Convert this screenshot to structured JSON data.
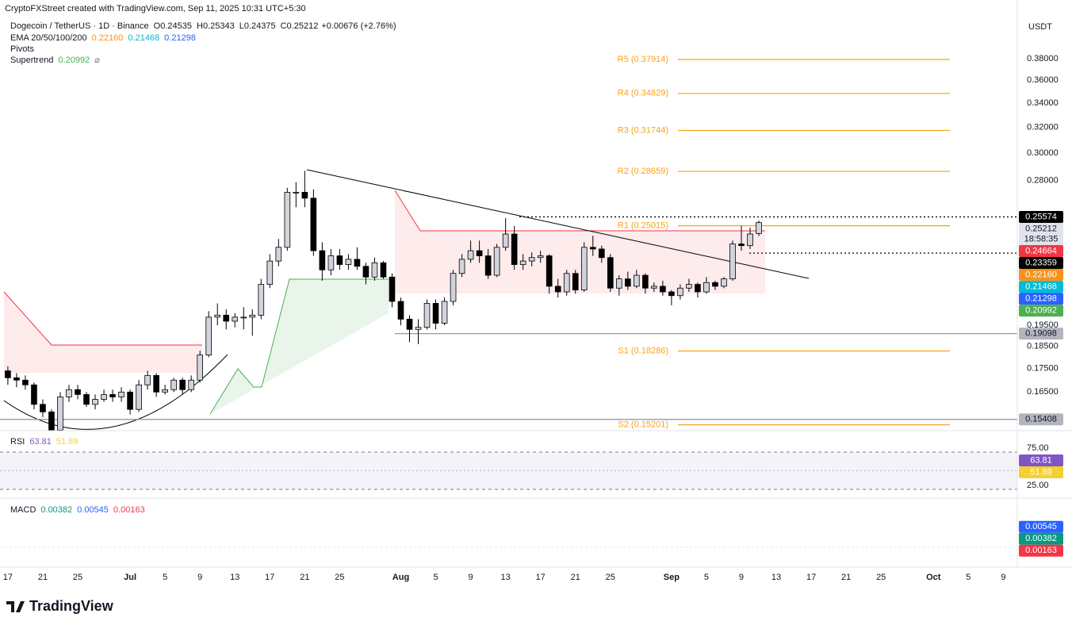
{
  "header": {
    "attribution": "CryptoFXStreet created with TradingView.com, Sep 11, 2025 10:31 UTC+5:30",
    "symbol": "Dogecoin / TetherUS · 1D · Binance",
    "open": "O0.24535",
    "high": "H0.25343",
    "low": "L0.24375",
    "close": "C0.25212",
    "change": "+0.00676 (+2.76%)",
    "ema_label": "EMA 20/50/100/200",
    "ema_values": [
      {
        "text": "0.22160",
        "color": "#f7931a"
      },
      {
        "text": "0.21468",
        "color": "#00bcd4"
      },
      {
        "text": "0.21298",
        "color": "#2962ff"
      }
    ],
    "pivots_label": "Pivots",
    "supertrend_label": "Supertrend",
    "supertrend_value": "0.20992",
    "currency": "USDT"
  },
  "chart_data": {
    "type": "candlestick",
    "log_scale": true,
    "up_color": "#d1d4dc",
    "down_color": "#000000",
    "ylim": [
      0.1498,
      0.44
    ],
    "yticks": [
      {
        "value": 0.38,
        "label": "0.38000"
      },
      {
        "value": 0.36,
        "label": "0.36000"
      },
      {
        "value": 0.34,
        "label": "0.34000"
      },
      {
        "value": 0.32,
        "label": "0.32000"
      },
      {
        "value": 0.3,
        "label": "0.30000"
      },
      {
        "value": 0.28,
        "label": "0.28000"
      },
      {
        "value": 0.195,
        "label": "0.19500"
      },
      {
        "value": 0.185,
        "label": "0.18500"
      },
      {
        "value": 0.175,
        "label": "0.17500"
      },
      {
        "value": 0.165,
        "label": "0.16500"
      }
    ],
    "xlim": [
      -0.9,
      115.6
    ],
    "xticks": [
      {
        "value": 0,
        "label": "17"
      },
      {
        "value": 4,
        "label": "21"
      },
      {
        "value": 8,
        "label": "25"
      },
      {
        "value": 14,
        "label": "Jul"
      },
      {
        "value": 18,
        "label": "5"
      },
      {
        "value": 22,
        "label": "9"
      },
      {
        "value": 26,
        "label": "13"
      },
      {
        "value": 30,
        "label": "17"
      },
      {
        "value": 34,
        "label": "21"
      },
      {
        "value": 38,
        "label": "25"
      },
      {
        "value": 45,
        "label": "Aug"
      },
      {
        "value": 49,
        "label": "5"
      },
      {
        "value": 53,
        "label": "9"
      },
      {
        "value": 57,
        "label": "13"
      },
      {
        "value": 61,
        "label": "17"
      },
      {
        "value": 65,
        "label": "21"
      },
      {
        "value": 69,
        "label": "25"
      },
      {
        "value": 76,
        "label": "Sep"
      },
      {
        "value": 80,
        "label": "5"
      },
      {
        "value": 84,
        "label": "9"
      },
      {
        "value": 88,
        "label": "13"
      },
      {
        "value": 92,
        "label": "17"
      },
      {
        "value": 96,
        "label": "21"
      },
      {
        "value": 100,
        "label": "25"
      },
      {
        "value": 106,
        "label": "Oct"
      },
      {
        "value": 110,
        "label": "5"
      },
      {
        "value": 114,
        "label": "9"
      }
    ],
    "candles": [
      [
        0.174,
        0.176,
        0.168,
        0.171
      ],
      [
        0.171,
        0.173,
        0.167,
        0.17
      ],
      [
        0.17,
        0.172,
        0.166,
        0.168
      ],
      [
        0.168,
        0.169,
        0.158,
        0.16
      ],
      [
        0.16,
        0.162,
        0.155,
        0.157
      ],
      [
        0.157,
        0.158,
        0.148,
        0.15
      ],
      [
        0.15,
        0.165,
        0.148,
        0.163
      ],
      [
        0.163,
        0.168,
        0.161,
        0.166
      ],
      [
        0.166,
        0.168,
        0.162,
        0.164
      ],
      [
        0.164,
        0.165,
        0.159,
        0.16
      ],
      [
        0.16,
        0.164,
        0.158,
        0.162
      ],
      [
        0.162,
        0.166,
        0.161,
        0.164
      ],
      [
        0.164,
        0.166,
        0.161,
        0.163
      ],
      [
        0.163,
        0.167,
        0.161,
        0.165
      ],
      [
        0.165,
        0.166,
        0.156,
        0.158
      ],
      [
        0.158,
        0.17,
        0.157,
        0.168
      ],
      [
        0.168,
        0.174,
        0.166,
        0.172
      ],
      [
        0.172,
        0.173,
        0.163,
        0.165
      ],
      [
        0.165,
        0.168,
        0.164,
        0.166
      ],
      [
        0.166,
        0.171,
        0.165,
        0.17
      ],
      [
        0.17,
        0.171,
        0.164,
        0.166
      ],
      [
        0.166,
        0.172,
        0.165,
        0.17
      ],
      [
        0.17,
        0.183,
        0.169,
        0.181
      ],
      [
        0.181,
        0.202,
        0.18,
        0.199
      ],
      [
        0.199,
        0.206,
        0.195,
        0.2
      ],
      [
        0.2,
        0.203,
        0.193,
        0.197
      ],
      [
        0.197,
        0.201,
        0.194,
        0.199
      ],
      [
        0.199,
        0.204,
        0.193,
        0.199
      ],
      [
        0.199,
        0.203,
        0.19,
        0.2
      ],
      [
        0.2,
        0.219,
        0.198,
        0.216
      ],
      [
        0.216,
        0.233,
        0.214,
        0.229
      ],
      [
        0.229,
        0.242,
        0.226,
        0.237
      ],
      [
        0.237,
        0.275,
        0.235,
        0.272
      ],
      [
        0.272,
        0.279,
        0.262,
        0.272
      ],
      [
        0.272,
        0.287,
        0.262,
        0.268
      ],
      [
        0.268,
        0.274,
        0.232,
        0.235
      ],
      [
        0.235,
        0.24,
        0.218,
        0.224
      ],
      [
        0.224,
        0.236,
        0.221,
        0.232
      ],
      [
        0.232,
        0.236,
        0.224,
        0.227
      ],
      [
        0.227,
        0.233,
        0.224,
        0.23
      ],
      [
        0.23,
        0.237,
        0.224,
        0.226
      ],
      [
        0.226,
        0.228,
        0.216,
        0.22
      ],
      [
        0.22,
        0.231,
        0.218,
        0.228
      ],
      [
        0.228,
        0.229,
        0.219,
        0.22
      ],
      [
        0.22,
        0.222,
        0.204,
        0.207
      ],
      [
        0.207,
        0.209,
        0.195,
        0.198
      ],
      [
        0.198,
        0.2,
        0.187,
        0.193
      ],
      [
        0.193,
        0.198,
        0.186,
        0.194
      ],
      [
        0.194,
        0.208,
        0.193,
        0.206
      ],
      [
        0.206,
        0.208,
        0.193,
        0.196
      ],
      [
        0.196,
        0.209,
        0.195,
        0.207
      ],
      [
        0.207,
        0.224,
        0.205,
        0.222
      ],
      [
        0.222,
        0.233,
        0.22,
        0.23
      ],
      [
        0.23,
        0.241,
        0.228,
        0.235
      ],
      [
        0.235,
        0.241,
        0.228,
        0.232
      ],
      [
        0.232,
        0.236,
        0.219,
        0.221
      ],
      [
        0.221,
        0.239,
        0.22,
        0.237
      ],
      [
        0.237,
        0.255,
        0.235,
        0.245
      ],
      [
        0.245,
        0.25,
        0.224,
        0.227
      ],
      [
        0.227,
        0.233,
        0.224,
        0.229
      ],
      [
        0.229,
        0.234,
        0.226,
        0.231
      ],
      [
        0.231,
        0.235,
        0.228,
        0.232
      ],
      [
        0.232,
        0.233,
        0.211,
        0.215
      ],
      [
        0.215,
        0.219,
        0.209,
        0.212
      ],
      [
        0.212,
        0.224,
        0.21,
        0.222
      ],
      [
        0.222,
        0.224,
        0.211,
        0.213
      ],
      [
        0.213,
        0.24,
        0.212,
        0.237
      ],
      [
        0.237,
        0.244,
        0.232,
        0.236
      ],
      [
        0.236,
        0.238,
        0.228,
        0.231
      ],
      [
        0.231,
        0.233,
        0.212,
        0.214
      ],
      [
        0.214,
        0.221,
        0.21,
        0.219
      ],
      [
        0.219,
        0.223,
        0.213,
        0.215
      ],
      [
        0.215,
        0.224,
        0.214,
        0.221
      ],
      [
        0.221,
        0.222,
        0.211,
        0.214
      ],
      [
        0.214,
        0.217,
        0.212,
        0.215
      ],
      [
        0.215,
        0.218,
        0.21,
        0.212
      ],
      [
        0.212,
        0.213,
        0.205,
        0.21
      ],
      [
        0.21,
        0.216,
        0.208,
        0.214
      ],
      [
        0.214,
        0.219,
        0.212,
        0.216
      ],
      [
        0.216,
        0.217,
        0.209,
        0.212
      ],
      [
        0.212,
        0.22,
        0.211,
        0.217
      ],
      [
        0.217,
        0.218,
        0.213,
        0.215
      ],
      [
        0.215,
        0.22,
        0.214,
        0.219
      ],
      [
        0.219,
        0.241,
        0.218,
        0.239
      ],
      [
        0.239,
        0.25,
        0.235,
        0.238
      ],
      [
        0.238,
        0.249,
        0.236,
        0.245
      ],
      [
        0.24535,
        0.25343,
        0.24375,
        0.25212
      ]
    ],
    "pivots": [
      {
        "label": "R5 (0.37914)",
        "value": 0.37914
      },
      {
        "label": "R4 (0.34829)",
        "value": 0.34829
      },
      {
        "label": "R3 (0.31744)",
        "value": 0.31744
      },
      {
        "label": "R2 (0.28659)",
        "value": 0.28659
      },
      {
        "label": "R1 (0.25015)",
        "value": 0.25015
      },
      {
        "label": "S1 (0.18286)",
        "value": 0.18286
      },
      {
        "label": "S2 (0.15201)",
        "value": 0.15201
      }
    ],
    "pivot_color": "#f7a21b",
    "price_labels": [
      {
        "value": 0.25574,
        "label": "0.25574",
        "color": "#000000",
        "text_color": "#ffffff"
      },
      {
        "value": 0.25212,
        "label": "0.25212",
        "sublabel": "18:58:35",
        "color": "#e0e3eb",
        "text_color": "#131722"
      },
      {
        "value": 0.24664,
        "label": "0.24664",
        "color": "#f23645",
        "text_color": "#ffffff"
      },
      {
        "value": 0.23359,
        "label": "0.23359",
        "color": "#000000",
        "text_color": "#ffffff"
      },
      {
        "value": 0.2216,
        "label": "0.22160",
        "color": "#f7931a",
        "text_color": "#ffffff"
      },
      {
        "value": 0.21468,
        "label": "0.21468",
        "color": "#00bcd4",
        "text_color": "#ffffff"
      },
      {
        "value": 0.21298,
        "label": "0.21298",
        "color": "#2962ff",
        "text_color": "#ffffff"
      },
      {
        "value": 0.20992,
        "label": "0.20992",
        "color": "#4caf50",
        "text_color": "#ffffff"
      },
      {
        "value": 0.19098,
        "label": "0.19098",
        "color": "#b2b5be",
        "text_color": "#131722"
      },
      {
        "value": 0.15408,
        "label": "0.15408",
        "color": "#b2b5be",
        "text_color": "#131722"
      }
    ],
    "rsi": {
      "title": "RSI",
      "values": [
        {
          "text": "63.81",
          "value": 63.81,
          "color": "#7e57c2"
        },
        {
          "text": "51.89",
          "value": 51.89,
          "color": "#f5d033"
        }
      ],
      "ylim": [
        13.3,
        101.6
      ],
      "yticks": [
        {
          "value": 75,
          "label": "75.00"
        },
        {
          "value": 25,
          "label": "25.00"
        }
      ]
    },
    "macd": {
      "title": "MACD",
      "values": [
        {
          "text": "0.00382",
          "value": 0.00382,
          "color": "#089981"
        },
        {
          "text": "0.00545",
          "value": 0.00545,
          "color": "#2962ff"
        },
        {
          "text": "0.00163",
          "value": 0.00163,
          "color": "#f23645"
        }
      ],
      "ylim": [
        -0.005,
        0.0125
      ]
    }
  },
  "footer": {
    "logo": "TradingView"
  }
}
